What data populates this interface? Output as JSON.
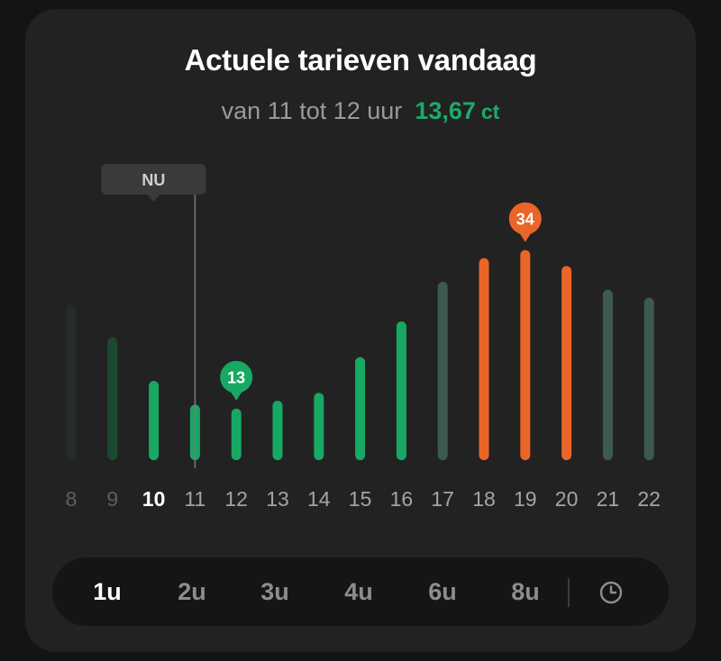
{
  "header": {
    "title": "Actuele tarieven vandaag",
    "range_text": "van 11 tot 12 uur",
    "price": "13,67",
    "price_unit": "ct"
  },
  "chart_data": {
    "type": "bar",
    "title": "Actuele tarieven vandaag",
    "categories": [
      "8",
      "9",
      "10",
      "11",
      "12",
      "13",
      "14",
      "15",
      "16",
      "17",
      "18",
      "19",
      "20",
      "21",
      "22"
    ],
    "values": [
      19.5,
      15.5,
      10,
      7,
      6.5,
      7.5,
      8.5,
      13,
      17.5,
      22.5,
      25.5,
      26.5,
      24.5,
      21.5,
      20.5
    ],
    "bar_colors": [
      "#252c29",
      "#1b4a33",
      "#17a864",
      "#17a864",
      "#17a864",
      "#17a864",
      "#17a864",
      "#17a864",
      "#17a864",
      "#3d5951",
      "#ea6528",
      "#ea6528",
      "#ea6528",
      "#3d5951",
      "#3d5951"
    ],
    "label_styles": [
      "past",
      "past",
      "current",
      "future",
      "future",
      "future",
      "future",
      "future",
      "future",
      "future",
      "future",
      "future",
      "future",
      "future",
      "future"
    ],
    "now_label": "NU",
    "now_position": 11,
    "min_marker": {
      "category": "12",
      "label": "13",
      "color": "#17a864"
    },
    "max_marker": {
      "category": "19",
      "label": "34",
      "color": "#ea6528"
    },
    "ylim": [
      0,
      27
    ]
  },
  "interval_selector": {
    "options": [
      "1u",
      "2u",
      "3u",
      "4u",
      "6u",
      "8u"
    ],
    "active_index": 0,
    "clock_icon": "clock-icon"
  },
  "colors": {
    "green": "#17a864",
    "orange": "#ea6528",
    "muted_teal": "#3d5951",
    "card_bg": "#222222"
  }
}
